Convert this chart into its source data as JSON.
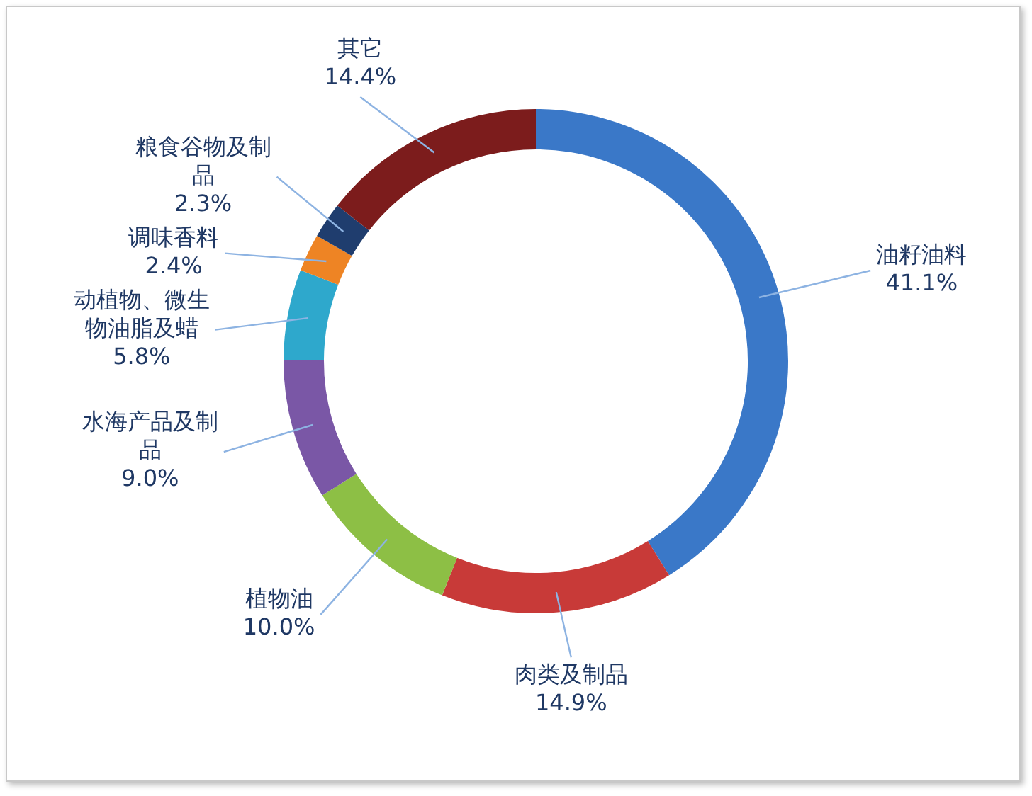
{
  "chart_data": {
    "type": "donut",
    "categories": [
      "油籽油料",
      "肉类及制品",
      "植物油",
      "水海产品及制品",
      "动植物、微生物油脂及蜡",
      "调味香料",
      "粮食谷物及制品",
      "其它"
    ],
    "values": [
      41.1,
      14.9,
      10.0,
      9.0,
      5.8,
      2.4,
      2.3,
      14.4
    ],
    "colors": [
      "#3a78c8",
      "#c83a38",
      "#8dbf45",
      "#7a57a6",
      "#2ea8cc",
      "#ee8424",
      "#1f3d6e",
      "#7c1c1c"
    ],
    "value_labels": [
      "41.1%",
      "14.9%",
      "10.0%",
      "9.0%",
      "5.8%",
      "2.4%",
      "2.3%",
      "14.4%"
    ]
  }
}
